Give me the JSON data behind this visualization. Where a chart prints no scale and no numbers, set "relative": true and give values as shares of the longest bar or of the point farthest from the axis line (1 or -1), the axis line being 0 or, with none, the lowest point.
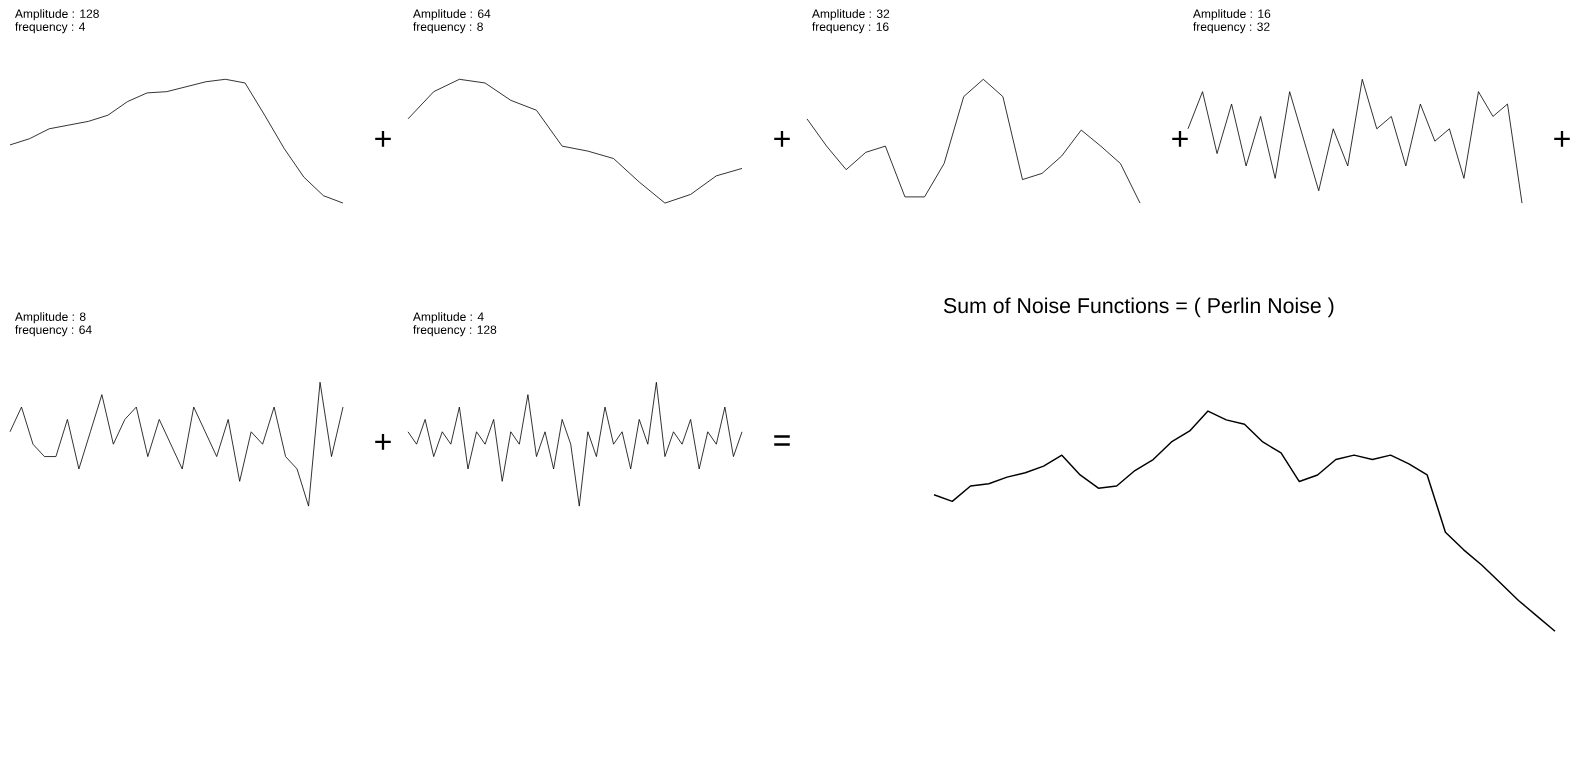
{
  "chart_data": [
    {
      "type": "line",
      "relative": true,
      "title": "Amplitude : 128",
      "subtitle": "frequency : 4",
      "annotations": [
        "+"
      ],
      "color": "#000000",
      "categories": [
        null,
        null,
        null,
        null,
        null,
        null,
        null,
        null,
        null,
        null,
        null,
        null,
        null,
        null,
        null,
        null,
        null,
        null
      ],
      "values": [
        0.47,
        0.52,
        0.6,
        0.63,
        0.66,
        0.71,
        0.82,
        0.89,
        0.9,
        0.94,
        0.98,
        1.0,
        0.97,
        0.71,
        0.44,
        0.21,
        0.06,
        0.0
      ]
    },
    {
      "type": "line",
      "relative": true,
      "title": "Amplitude : 64",
      "subtitle": "frequency : 8",
      "annotations": [
        "+"
      ],
      "color": "#000000",
      "categories": [
        null,
        null,
        null,
        null,
        null,
        null,
        null,
        null,
        null,
        null,
        null,
        null,
        null,
        null
      ],
      "values": [
        0.68,
        0.9,
        1.0,
        0.97,
        0.83,
        0.75,
        0.46,
        0.42,
        0.36,
        0.17,
        0.0,
        0.07,
        0.22,
        0.28
      ]
    },
    {
      "type": "line",
      "relative": true,
      "title": "Amplitude : 32",
      "subtitle": "frequency : 16",
      "annotations": [
        "+"
      ],
      "color": "#000000",
      "categories": [
        null,
        null,
        null,
        null,
        null,
        null,
        null,
        null,
        null,
        null,
        null,
        null,
        null,
        null,
        null,
        null,
        null,
        null
      ],
      "values": [
        0.68,
        0.46,
        0.27,
        0.41,
        0.46,
        0.05,
        0.05,
        0.32,
        0.86,
        1.0,
        0.86,
        0.19,
        0.24,
        0.38,
        0.59,
        0.46,
        0.32,
        0.0
      ]
    },
    {
      "type": "line",
      "relative": true,
      "title": "Amplitude : 16",
      "subtitle": "frequency : 32",
      "annotations": [
        "+"
      ],
      "color": "#000000",
      "categories": [
        null,
        null,
        null,
        null,
        null,
        null,
        null,
        null,
        null,
        null,
        null,
        null,
        null,
        null,
        null,
        null,
        null,
        null,
        null,
        null,
        null,
        null,
        null,
        null
      ],
      "values": [
        0.6,
        0.9,
        0.4,
        0.8,
        0.3,
        0.7,
        0.2,
        0.9,
        0.5,
        0.1,
        0.6,
        0.3,
        1.0,
        0.6,
        0.7,
        0.3,
        0.8,
        0.5,
        0.6,
        0.2,
        0.9,
        0.7,
        0.8,
        0.0
      ]
    },
    {
      "type": "line",
      "relative": true,
      "title": "Amplitude : 8",
      "subtitle": "frequency : 64",
      "annotations": [
        "+"
      ],
      "color": "#000000",
      "categories": [
        null,
        null,
        null,
        null,
        null,
        null,
        null,
        null,
        null,
        null,
        null,
        null,
        null,
        null,
        null,
        null,
        null,
        null,
        null,
        null,
        null,
        null,
        null,
        null,
        null,
        null,
        null,
        null,
        null,
        null
      ],
      "values": [
        0.6,
        0.8,
        0.5,
        0.4,
        0.4,
        0.7,
        0.3,
        0.6,
        0.9,
        0.5,
        0.7,
        0.8,
        0.4,
        0.7,
        0.5,
        0.3,
        0.8,
        0.6,
        0.4,
        0.7,
        0.2,
        0.6,
        0.5,
        0.8,
        0.4,
        0.3,
        0.0,
        1.0,
        0.4,
        0.8
      ]
    },
    {
      "type": "line",
      "relative": true,
      "title": "Amplitude : 4",
      "subtitle": "frequency : 128",
      "annotations": [
        "="
      ],
      "color": "#000000",
      "categories": [
        null,
        null,
        null,
        null,
        null,
        null,
        null,
        null,
        null,
        null,
        null,
        null,
        null,
        null,
        null,
        null,
        null,
        null,
        null,
        null,
        null,
        null,
        null,
        null,
        null,
        null,
        null,
        null,
        null,
        null,
        null,
        null,
        null,
        null,
        null,
        null,
        null,
        null,
        null,
        null
      ],
      "values": [
        0.6,
        0.5,
        0.7,
        0.4,
        0.6,
        0.5,
        0.8,
        0.3,
        0.6,
        0.5,
        0.7,
        0.2,
        0.6,
        0.5,
        0.9,
        0.4,
        0.6,
        0.3,
        0.7,
        0.5,
        0.0,
        0.6,
        0.4,
        0.8,
        0.5,
        0.6,
        0.3,
        0.7,
        0.5,
        1.0,
        0.4,
        0.6,
        0.5,
        0.7,
        0.3,
        0.6,
        0.5,
        0.8,
        0.4,
        0.6
      ]
    },
    {
      "type": "line",
      "relative": true,
      "title": "Sum of Noise Functions  = ( Perlin Noise )",
      "color": "#000000",
      "categories": [
        null,
        null,
        null,
        null,
        null,
        null,
        null,
        null,
        null,
        null,
        null,
        null,
        null,
        null,
        null,
        null,
        null,
        null,
        null,
        null,
        null,
        null,
        null,
        null,
        null,
        null,
        null,
        null,
        null,
        null,
        null,
        null,
        null,
        null,
        null
      ],
      "values": [
        0.62,
        0.59,
        0.66,
        0.67,
        0.7,
        0.72,
        0.75,
        0.8,
        0.71,
        0.65,
        0.66,
        0.73,
        0.78,
        0.86,
        0.91,
        1.0,
        0.96,
        0.94,
        0.86,
        0.81,
        0.68,
        0.71,
        0.78,
        0.8,
        0.78,
        0.8,
        0.76,
        0.71,
        0.45,
        0.37,
        0.3,
        0.22,
        0.14,
        0.07,
        0.0
      ]
    }
  ]
}
